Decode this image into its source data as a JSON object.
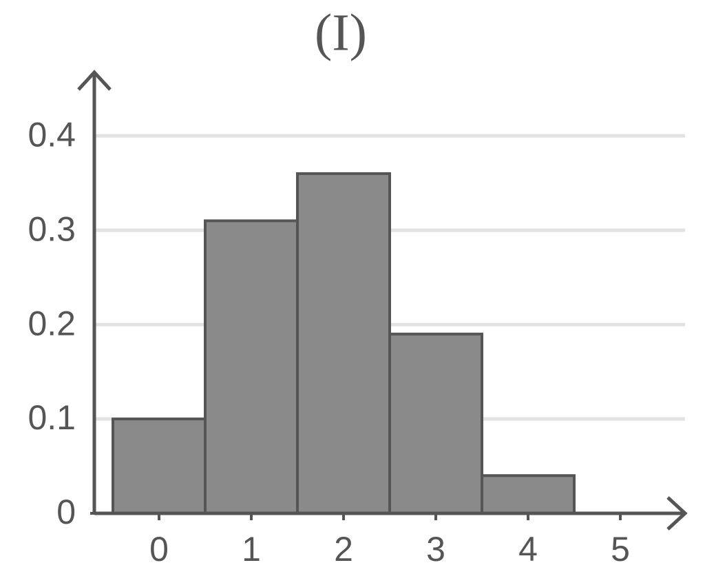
{
  "chart_data": {
    "type": "bar",
    "title": "(I)",
    "categories": [
      "0",
      "1",
      "2",
      "3",
      "4",
      "5"
    ],
    "values": [
      0.1,
      0.31,
      0.36,
      0.19,
      0.04,
      0
    ],
    "color": "#8a8a8a",
    "ylim": [
      0,
      0.46
    ],
    "yticks": [
      0,
      0.1,
      0.2,
      0.3,
      0.4
    ],
    "grid": true
  }
}
